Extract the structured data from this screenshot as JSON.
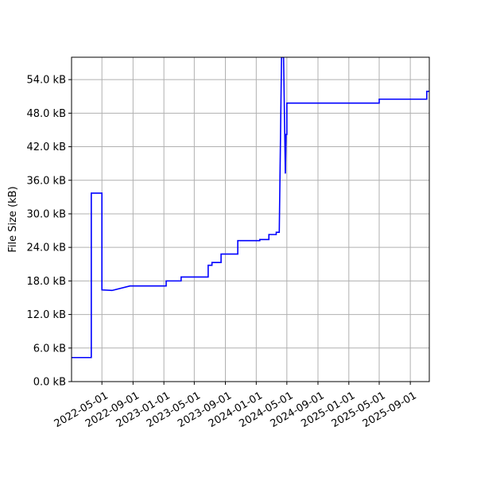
{
  "chart_data": {
    "type": "line",
    "title": "",
    "xlabel": "",
    "ylabel": "File Size (kB)",
    "x_axis": "date",
    "xlim": [
      "2022-01-01",
      "2025-11-15"
    ],
    "ylim": [
      0,
      58
    ],
    "grid": true,
    "legend": "none",
    "x_tick_labels": [
      "2022-05-01",
      "2022-09-01",
      "2023-01-01",
      "2023-05-01",
      "2023-09-01",
      "2024-01-01",
      "2024-05-01",
      "2024-09-01",
      "2025-01-01",
      "2025-05-01",
      "2025-09-01"
    ],
    "y_ticks": [
      0,
      6,
      12,
      18,
      24,
      30,
      36,
      42,
      48,
      54
    ],
    "y_tick_labels": [
      "0.0 kB",
      "6.0 kB",
      "12.0 kB",
      "18.0 kB",
      "24.0 kB",
      "30.0 kB",
      "36.0 kB",
      "42.0 kB",
      "48.0 kB",
      "54.0 kB"
    ],
    "series": [
      {
        "color": "#0000ff",
        "style": "step",
        "points": [
          [
            "2022-01-01",
            4.3
          ],
          [
            "2022-03-20",
            4.3
          ],
          [
            "2022-03-20",
            33.7
          ],
          [
            "2022-05-01",
            33.7
          ],
          [
            "2022-05-01",
            16.4
          ],
          [
            "2022-06-10",
            16.3
          ],
          [
            "2022-08-20",
            17.1
          ],
          [
            "2023-01-10",
            17.1
          ],
          [
            "2023-01-10",
            18.0
          ],
          [
            "2023-03-10",
            18.0
          ],
          [
            "2023-03-10",
            18.7
          ],
          [
            "2023-06-25",
            18.7
          ],
          [
            "2023-06-25",
            20.8
          ],
          [
            "2023-07-10",
            20.8
          ],
          [
            "2023-07-10",
            21.3
          ],
          [
            "2023-08-15",
            21.3
          ],
          [
            "2023-08-15",
            22.8
          ],
          [
            "2023-10-20",
            22.8
          ],
          [
            "2023-10-20",
            25.2
          ],
          [
            "2024-01-15",
            25.2
          ],
          [
            "2024-01-15",
            25.4
          ],
          [
            "2024-02-20",
            25.4
          ],
          [
            "2024-02-20",
            26.3
          ],
          [
            "2024-03-20",
            26.3
          ],
          [
            "2024-03-20",
            26.7
          ],
          [
            "2024-04-01",
            26.7
          ],
          [
            "2024-04-10",
            58.0
          ],
          [
            "2024-04-18",
            58.0
          ],
          [
            "2024-04-25",
            37.2
          ],
          [
            "2024-04-28",
            44.2
          ],
          [
            "2024-05-01",
            44.2
          ],
          [
            "2024-05-01",
            49.8
          ],
          [
            "2025-05-01",
            49.8
          ],
          [
            "2025-05-01",
            50.5
          ],
          [
            "2025-11-05",
            50.5
          ],
          [
            "2025-11-05",
            51.9
          ],
          [
            "2025-11-15",
            51.9
          ]
        ]
      }
    ]
  }
}
